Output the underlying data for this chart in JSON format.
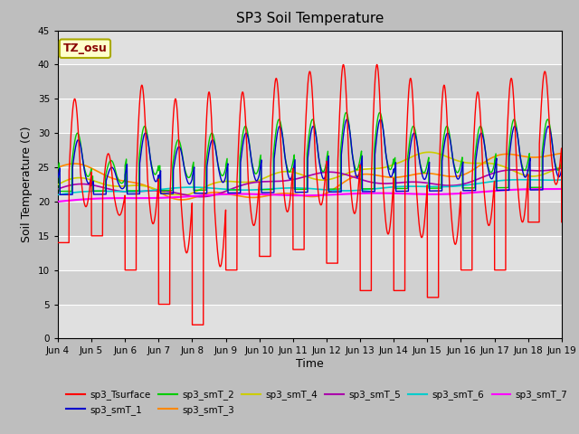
{
  "title": "SP3 Soil Temperature",
  "xlabel": "Time",
  "ylabel": "Soil Temperature (C)",
  "ylim": [
    0,
    45
  ],
  "yticks": [
    0,
    5,
    10,
    15,
    20,
    25,
    30,
    35,
    40,
    45
  ],
  "fig_bg_color": "#c8c8c8",
  "plot_bg_color": "#e0e0e0",
  "tz_label": "TZ_osu",
  "series_colors": {
    "sp3_Tsurface": "#ff0000",
    "sp3_smT_1": "#0000cc",
    "sp3_smT_2": "#00cc00",
    "sp3_smT_3": "#ff8800",
    "sp3_smT_4": "#cccc00",
    "sp3_smT_5": "#aa00aa",
    "sp3_smT_6": "#00cccc",
    "sp3_smT_7": "#ff00ff"
  },
  "x_start": 4,
  "x_end": 19,
  "x_ticks": [
    4,
    5,
    6,
    7,
    8,
    9,
    10,
    11,
    12,
    13,
    14,
    15,
    16,
    17,
    18,
    19
  ],
  "x_tick_labels": [
    "Jun 4",
    "Jun 5",
    "Jun 6",
    "Jun 7",
    "Jun 8",
    "Jun 9",
    "Jun 10",
    "Jun 11",
    "Jun 12",
    "Jun 13",
    "Jun 14",
    "Jun 15",
    "Jun 16",
    "Jun 17",
    "Jun 18",
    "Jun 19"
  ]
}
